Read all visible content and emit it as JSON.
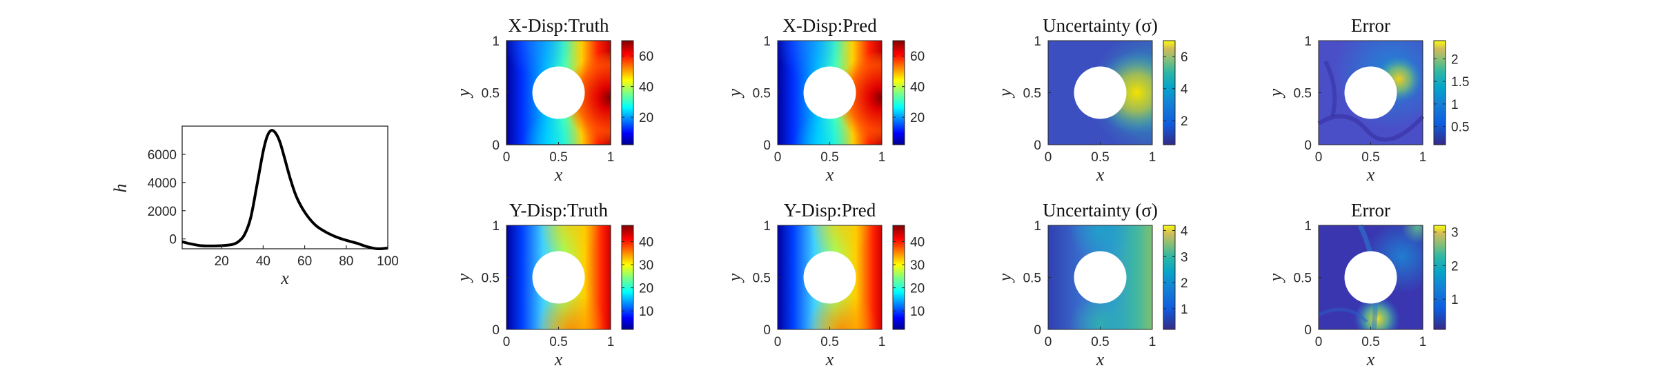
{
  "colors": {
    "axis": "#262626",
    "hole": "#ffffff",
    "line": "#000000"
  },
  "line_plot": {
    "xlabel": "x",
    "ylabel": "h",
    "xticks": [
      "20",
      "40",
      "60",
      "80",
      "100"
    ],
    "yticks": [
      "0",
      "2000",
      "4000",
      "6000"
    ]
  },
  "panels": [
    {
      "title": "X-Disp:Truth",
      "colormap": "jet",
      "cbar_ticks": [
        "20",
        "40",
        "60"
      ],
      "xticks": [
        "0",
        "0.5",
        "1"
      ],
      "yticks": [
        "0",
        "0.5",
        "1"
      ],
      "xlabel": "x",
      "ylabel": "y"
    },
    {
      "title": "X-Disp:Pred",
      "colormap": "jet",
      "cbar_ticks": [
        "20",
        "40",
        "60"
      ],
      "xticks": [
        "0",
        "0.5",
        "1"
      ],
      "yticks": [
        "0",
        "0.5",
        "1"
      ],
      "xlabel": "x",
      "ylabel": "y"
    },
    {
      "title": "Uncertainty (σ)",
      "colormap": "parula",
      "cbar_ticks": [
        "2",
        "4",
        "6"
      ],
      "xticks": [
        "0",
        "0.5",
        "1"
      ],
      "yticks": [
        "0",
        "0.5",
        "1"
      ],
      "xlabel": "x",
      "ylabel": "y"
    },
    {
      "title": "Error",
      "colormap": "parula",
      "cbar_ticks": [
        "0.5",
        "1",
        "1.5",
        "2"
      ],
      "xticks": [
        "0",
        "0.5",
        "1"
      ],
      "yticks": [
        "0",
        "0.5",
        "1"
      ],
      "xlabel": "x",
      "ylabel": "y"
    },
    {
      "title": "Y-Disp:Truth",
      "colormap": "jet",
      "cbar_ticks": [
        "10",
        "20",
        "30",
        "40"
      ],
      "xticks": [
        "0",
        "0.5",
        "1"
      ],
      "yticks": [
        "0",
        "0.5",
        "1"
      ],
      "xlabel": "x",
      "ylabel": "y"
    },
    {
      "title": "Y-Disp:Pred",
      "colormap": "jet",
      "cbar_ticks": [
        "10",
        "20",
        "30",
        "40"
      ],
      "xticks": [
        "0",
        "0.5",
        "1"
      ],
      "yticks": [
        "0",
        "0.5",
        "1"
      ],
      "xlabel": "x",
      "ylabel": "y"
    },
    {
      "title": "Uncertainty (σ)",
      "colormap": "parula",
      "cbar_ticks": [
        "1",
        "2",
        "3",
        "4"
      ],
      "xticks": [
        "0",
        "0.5",
        "1"
      ],
      "yticks": [
        "0",
        "0.5",
        "1"
      ],
      "xlabel": "x",
      "ylabel": "y"
    },
    {
      "title": "Error",
      "colormap": "parula",
      "cbar_ticks": [
        "1",
        "2",
        "3"
      ],
      "xticks": [
        "0",
        "0.5",
        "1"
      ],
      "yticks": [
        "0",
        "0.5",
        "1"
      ],
      "xlabel": "x",
      "ylabel": "y"
    }
  ],
  "chart_data": [
    {
      "type": "line",
      "xlabel": "x",
      "ylabel": "h",
      "xlim": [
        1,
        100
      ],
      "ylim": [
        -700,
        8000
      ],
      "grid": false,
      "x": [
        1,
        5,
        10,
        15,
        20,
        25,
        28,
        31,
        34,
        37,
        40,
        42,
        44,
        46,
        48,
        50,
        53,
        56,
        60,
        65,
        70,
        75,
        80,
        85,
        90,
        95,
        100
      ],
      "series": [
        {
          "values": [
            -200,
            -350,
            -480,
            -500,
            -480,
            -400,
            -200,
            300,
            1500,
            3800,
            6200,
            7300,
            7700,
            7500,
            6900,
            5900,
            4300,
            3000,
            1900,
            1000,
            500,
            150,
            -100,
            -300,
            -550,
            -700,
            -650
          ]
        }
      ]
    },
    {
      "type": "heatmap",
      "title": "X-Disp:Truth",
      "xlim": [
        0,
        1
      ],
      "ylim": [
        0,
        1
      ],
      "colorbar": {
        "colormap": "jet",
        "range": [
          2,
          70
        ],
        "ticks": [
          20,
          40,
          60
        ]
      },
      "hole": {
        "center": [
          0.5,
          0.5
        ],
        "radius": 0.25
      }
    },
    {
      "type": "heatmap",
      "title": "X-Disp:Pred",
      "xlim": [
        0,
        1
      ],
      "ylim": [
        0,
        1
      ],
      "colorbar": {
        "colormap": "jet",
        "range": [
          2,
          70
        ],
        "ticks": [
          20,
          40,
          60
        ]
      },
      "hole": {
        "center": [
          0.5,
          0.5
        ],
        "radius": 0.25
      }
    },
    {
      "type": "heatmap",
      "title": "Uncertainty (σ)",
      "xlim": [
        0,
        1
      ],
      "ylim": [
        0,
        1
      ],
      "colorbar": {
        "colormap": "parula",
        "range": [
          0.5,
          7
        ],
        "ticks": [
          2,
          4,
          6
        ]
      },
      "hole": {
        "center": [
          0.5,
          0.5
        ],
        "radius": 0.25
      }
    },
    {
      "type": "heatmap",
      "title": "Error",
      "xlim": [
        0,
        1
      ],
      "ylim": [
        0,
        1
      ],
      "colorbar": {
        "colormap": "parula",
        "range": [
          0.1,
          2.4
        ],
        "ticks": [
          0.5,
          1,
          1.5,
          2
        ]
      },
      "hole": {
        "center": [
          0.5,
          0.5
        ],
        "radius": 0.25
      }
    },
    {
      "type": "heatmap",
      "title": "Y-Disp:Truth",
      "xlim": [
        0,
        1
      ],
      "ylim": [
        0,
        1
      ],
      "colorbar": {
        "colormap": "jet",
        "range": [
          2,
          47
        ],
        "ticks": [
          10,
          20,
          30,
          40
        ]
      },
      "hole": {
        "center": [
          0.5,
          0.5
        ],
        "radius": 0.25
      }
    },
    {
      "type": "heatmap",
      "title": "Y-Disp:Pred",
      "xlim": [
        0,
        1
      ],
      "ylim": [
        0,
        1
      ],
      "colorbar": {
        "colormap": "jet",
        "range": [
          2,
          47
        ],
        "ticks": [
          10,
          20,
          30,
          40
        ]
      },
      "hole": {
        "center": [
          0.5,
          0.5
        ],
        "radius": 0.25
      }
    },
    {
      "type": "heatmap",
      "title": "Uncertainty (σ)",
      "xlim": [
        0,
        1
      ],
      "ylim": [
        0,
        1
      ],
      "colorbar": {
        "colormap": "parula",
        "range": [
          0.2,
          4.2
        ],
        "ticks": [
          1,
          2,
          3,
          4
        ]
      },
      "hole": {
        "center": [
          0.5,
          0.5
        ],
        "radius": 0.25
      }
    },
    {
      "type": "heatmap",
      "title": "Error",
      "xlim": [
        0,
        1
      ],
      "ylim": [
        0,
        1
      ],
      "colorbar": {
        "colormap": "parula",
        "range": [
          0.1,
          3.2
        ],
        "ticks": [
          1,
          2,
          3
        ]
      },
      "hole": {
        "center": [
          0.5,
          0.5
        ],
        "radius": 0.25
      }
    }
  ]
}
